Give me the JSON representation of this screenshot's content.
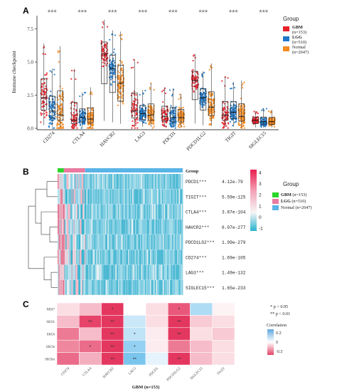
{
  "panels": {
    "a": "A",
    "b": "B",
    "c": "C"
  },
  "colors": {
    "GBM": "#e8202a",
    "LGG": "#1f78c8",
    "Normal": "#f58a1f"
  },
  "panel_a": {
    "significance": "***",
    "legend": {
      "title": "Group",
      "items": [
        {
          "label": "GBM",
          "n": "(n=153)"
        },
        {
          "label": "LGG",
          "n": "(n=510)"
        },
        {
          "label": "Normal",
          "n": "(n=2647)"
        }
      ]
    }
  },
  "panel_b": {
    "legend": {
      "title": "Group",
      "items": [
        {
          "label": "GBM",
          "n": "(n=153)",
          "color": "#2bd62b"
        },
        {
          "label": "LGG",
          "n": "(n=510)",
          "color": "#e97aa0"
        },
        {
          "label": "Normal",
          "n": "(n=2647)",
          "color": "#5ab4e6"
        }
      ]
    },
    "scale_ticks": [
      "4",
      "3",
      "2",
      "1",
      "0",
      "-1"
    ]
  },
  "panel_c": {
    "corr_legend_title": "Correlation",
    "corr_ticks": [
      "0.2",
      "0",
      "-0.2"
    ],
    "pvalue_notes": [
      "* p < 0.05",
      "** p < 0.01"
    ]
  },
  "chart_data": [
    {
      "type": "scatter",
      "subtype": "boxplot-with-jitter",
      "ylabel": "Immune checkpoint",
      "ylim": [
        0,
        8.5
      ],
      "yticks": [
        "0.0",
        "2.5",
        "5.0",
        "7.5"
      ],
      "grid": false,
      "legend_position": "right",
      "categories": [
        "CD274",
        "CTLA4",
        "HAVCR2",
        "LAG3",
        "PDCD1",
        "PDCD1LG2",
        "TIGIT",
        "SIGLEC15"
      ],
      "series": [
        {
          "name": "GBM",
          "median": [
            2.3,
            0.6,
            5.6,
            1.3,
            0.9,
            3.6,
            1.0,
            0.6
          ],
          "max": [
            6.4,
            4.5,
            8.2,
            5.2,
            3.1,
            5.6,
            3.9,
            1.3
          ]
        },
        {
          "name": "LGG",
          "median": [
            1.3,
            0.8,
            4.5,
            1.1,
            0.8,
            2.3,
            1.2,
            0.5
          ],
          "max": [
            4.5,
            2.7,
            7.4,
            2.9,
            3.0,
            4.3,
            3.5,
            1.5
          ]
        },
        {
          "name": "Normal",
          "median": [
            1.0,
            0.7,
            3.4,
            1.0,
            0.8,
            1.6,
            0.9,
            0.5
          ],
          "max": [
            6.2,
            3.1,
            7.3,
            3.4,
            2.6,
            4.9,
            3.6,
            1.4
          ]
        }
      ],
      "annotations": [
        "***",
        "***",
        "***",
        "***",
        "***",
        "***",
        "***",
        "***"
      ]
    },
    {
      "type": "heatmap",
      "column_annotation": "Group",
      "rows": [
        {
          "gene": "PDCD1***",
          "p": "4.12e-79"
        },
        {
          "gene": "TIGIT***",
          "p": "5.59e-125"
        },
        {
          "gene": "CTLA4***",
          "p": "3.87e-104"
        },
        {
          "gene": "HAVCR2***",
          "p": "6.07e-277"
        },
        {
          "gene": "PDCD1LG2***",
          "p": "1.99e-279"
        },
        {
          "gene": "CD274***",
          "p": "1.69e-105"
        },
        {
          "gene": "LAG3***",
          "p": "1.49e-132"
        },
        {
          "gene": "SIGLEC15***",
          "p": "1.65e-233"
        }
      ],
      "scale_range": [
        -1,
        4
      ]
    },
    {
      "type": "heatmap",
      "xlabel": "GBM (n=153)",
      "x": [
        "CD274",
        "CTLA4",
        "HAVCR2",
        "LAG3",
        "PDCD1",
        "PDCD1LG2",
        "SIGLEC15",
        "TIGIT"
      ],
      "y": [
        "MSI7",
        "SKOr",
        "SKOt",
        "SKOe",
        "SKOm"
      ],
      "values": [
        [
          -0.05,
          -0.1,
          -0.3,
          0.0,
          -0.05,
          -0.25,
          0.15,
          -0.02
        ],
        [
          -0.1,
          -0.28,
          -0.4,
          0.1,
          -0.05,
          -0.3,
          -0.08,
          -0.05
        ],
        [
          -0.2,
          -0.1,
          -0.32,
          0.12,
          -0.03,
          -0.3,
          -0.05,
          -0.08
        ],
        [
          -0.18,
          -0.22,
          -0.35,
          0.2,
          -0.03,
          -0.2,
          -0.1,
          -0.05
        ],
        [
          -0.22,
          -0.12,
          -0.32,
          0.25,
          0.05,
          -0.3,
          -0.1,
          -0.05
        ]
      ],
      "stars": [
        [
          "",
          "",
          "*",
          "",
          "",
          "*",
          "",
          ""
        ],
        [
          "",
          "**",
          "**",
          "",
          "",
          "**",
          "",
          ""
        ],
        [
          "",
          "",
          "**",
          "*",
          "",
          "**",
          "",
          ""
        ],
        [
          "",
          "*",
          "**",
          "*",
          "",
          "",
          "",
          ""
        ],
        [
          "",
          "",
          "**",
          "**",
          "",
          "**",
          "",
          ""
        ]
      ],
      "color_range": [
        -0.3,
        0.3
      ]
    }
  ]
}
